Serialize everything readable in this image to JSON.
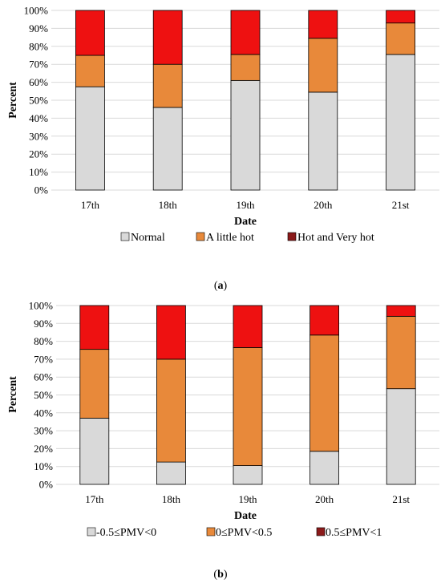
{
  "chart_data": [
    {
      "type": "bar",
      "stacked": true,
      "categories": [
        "17th",
        "18th",
        "19th",
        "20th",
        "21st"
      ],
      "series": [
        {
          "name": "Normal",
          "values": [
            57.5,
            46,
            61,
            54.5,
            75.5
          ],
          "color": "#d9d9d9"
        },
        {
          "name": "A little hot",
          "values": [
            17.5,
            24,
            14.5,
            30,
            17.5
          ],
          "color": "#e8893a"
        },
        {
          "name": "Hot and Very hot",
          "values": [
            25,
            30,
            24.5,
            15.5,
            7
          ],
          "color": "#ee1111"
        }
      ],
      "xlabel": "Date",
      "ylabel": "Percent",
      "ylim": [
        0,
        100
      ],
      "yticks": [
        "0%",
        "10%",
        "20%",
        "30%",
        "40%",
        "50%",
        "60%",
        "70%",
        "80%",
        "90%",
        "100%"
      ],
      "legend_position": "bottom",
      "legend_marker_colors": [
        "#d9d9d9",
        "#e8893a",
        "#8b1a1a"
      ],
      "caption": "(a)",
      "grid": true
    },
    {
      "type": "bar",
      "stacked": true,
      "categories": [
        "17th",
        "18th",
        "19th",
        "20th",
        "21st"
      ],
      "series": [
        {
          "name": "-0.5≤PMV<0",
          "values": [
            37,
            12.5,
            10.5,
            18.5,
            53.5
          ],
          "color": "#d9d9d9"
        },
        {
          "name": "0≤PMV<0.5",
          "values": [
            38.5,
            57.5,
            66,
            65,
            40.5
          ],
          "color": "#e8893a"
        },
        {
          "name": "0.5≤PMV<1",
          "values": [
            24.5,
            30,
            23.5,
            16.5,
            6
          ],
          "color": "#ee1111"
        }
      ],
      "xlabel": "Date",
      "ylabel": "Percent",
      "ylim": [
        0,
        100
      ],
      "yticks": [
        "0%",
        "10%",
        "20%",
        "30%",
        "40%",
        "50%",
        "60%",
        "70%",
        "80%",
        "90%",
        "100%"
      ],
      "legend_position": "bottom",
      "legend_marker_colors": [
        "#d9d9d9",
        "#e8893a",
        "#8b1a1a"
      ],
      "caption": "(b)",
      "grid": true
    }
  ]
}
